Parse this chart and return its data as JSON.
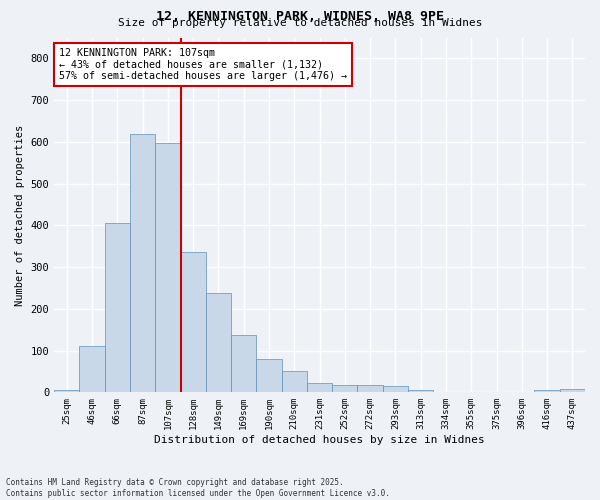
{
  "title_line1": "12, KENNINGTON PARK, WIDNES, WA8 9PE",
  "title_line2": "Size of property relative to detached houses in Widnes",
  "xlabel": "Distribution of detached houses by size in Widnes",
  "ylabel": "Number of detached properties",
  "categories": [
    "25sqm",
    "46sqm",
    "66sqm",
    "87sqm",
    "107sqm",
    "128sqm",
    "149sqm",
    "169sqm",
    "190sqm",
    "210sqm",
    "231sqm",
    "252sqm",
    "272sqm",
    "293sqm",
    "313sqm",
    "334sqm",
    "355sqm",
    "375sqm",
    "396sqm",
    "416sqm",
    "437sqm"
  ],
  "values": [
    5,
    110,
    405,
    620,
    598,
    335,
    237,
    137,
    80,
    52,
    22,
    17,
    18,
    14,
    5,
    0,
    0,
    0,
    0,
    6,
    8
  ],
  "bar_color": "#c8d8e8",
  "bar_edge_color": "#6090b8",
  "vline_index": 4,
  "vline_color": "#cc0000",
  "annotation_text": "12 KENNINGTON PARK: 107sqm\n← 43% of detached houses are smaller (1,132)\n57% of semi-detached houses are larger (1,476) →",
  "annotation_box_color": "#ffffff",
  "annotation_box_edge_color": "#cc0000",
  "ylim": [
    0,
    850
  ],
  "yticks": [
    0,
    100,
    200,
    300,
    400,
    500,
    600,
    700,
    800
  ],
  "background_color": "#eef2f7",
  "grid_color": "#ffffff",
  "footer_line1": "Contains HM Land Registry data © Crown copyright and database right 2025.",
  "footer_line2": "Contains public sector information licensed under the Open Government Licence v3.0."
}
